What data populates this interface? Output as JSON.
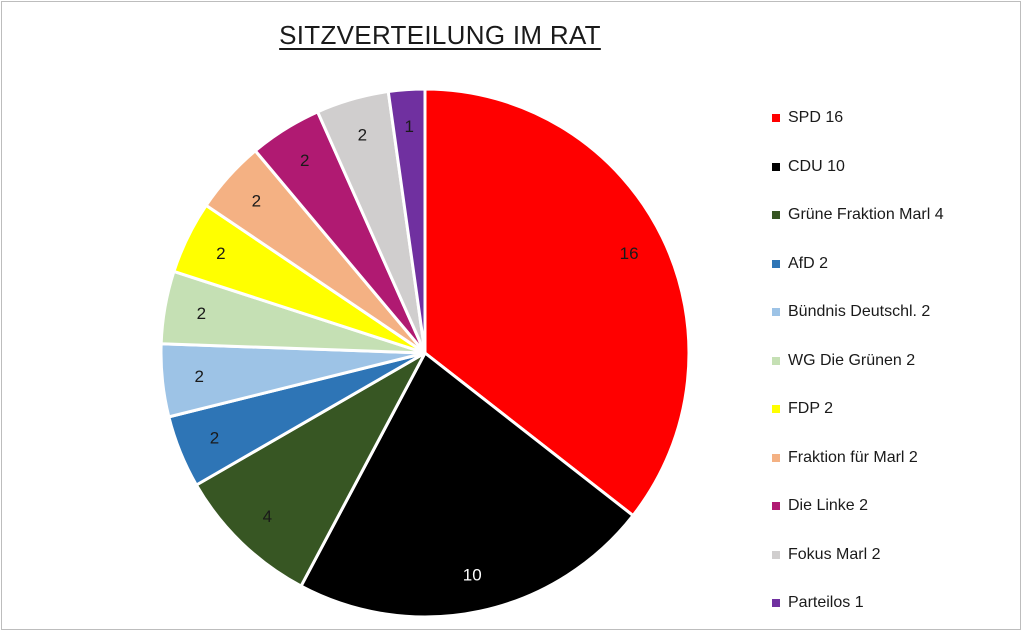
{
  "chart_data": {
    "type": "pie",
    "title": "SITZVERTEILUNG IM RAT",
    "slices": [
      {
        "label": "SPD 16",
        "value": 16,
        "data_label": "16",
        "color": "#ff0000",
        "label_color": "#1a1a1a"
      },
      {
        "label": "CDU 10",
        "value": 10,
        "data_label": "10",
        "color": "#000000",
        "label_color": "#ffffff"
      },
      {
        "label": "Grüne Fraktion Marl 4",
        "value": 4,
        "data_label": "4",
        "color": "#375623",
        "label_color": "#1a1a1a"
      },
      {
        "label": "AfD 2",
        "value": 2,
        "data_label": "2",
        "color": "#2e75b6",
        "label_color": "#1a1a1a"
      },
      {
        "label": "Bündnis Deutschl. 2",
        "value": 2,
        "data_label": "2",
        "color": "#9dc3e6",
        "label_color": "#1a1a1a"
      },
      {
        "label": "WG Die Grünen 2",
        "value": 2,
        "data_label": "2",
        "color": "#c5e0b4",
        "label_color": "#1a1a1a"
      },
      {
        "label": "FDP 2",
        "value": 2,
        "data_label": "2",
        "color": "#ffff00",
        "label_color": "#1a1a1a"
      },
      {
        "label": "Fraktion für Marl 2",
        "value": 2,
        "data_label": "2",
        "color": "#f4b183",
        "label_color": "#1a1a1a"
      },
      {
        "label": "Die Linke 2",
        "value": 2,
        "data_label": "2",
        "color": "#b01a72",
        "label_color": "#1a1a1a"
      },
      {
        "label": "Fokus Marl 2",
        "value": 2,
        "data_label": "2",
        "color": "#d0cece",
        "label_color": "#1a1a1a"
      },
      {
        "label": "Parteilos 1",
        "value": 1,
        "data_label": "1",
        "color": "#7030a0",
        "label_color": "#1a1a1a"
      }
    ],
    "start": "12 o'clock",
    "direction": "clockwise",
    "legend_position": "right"
  }
}
